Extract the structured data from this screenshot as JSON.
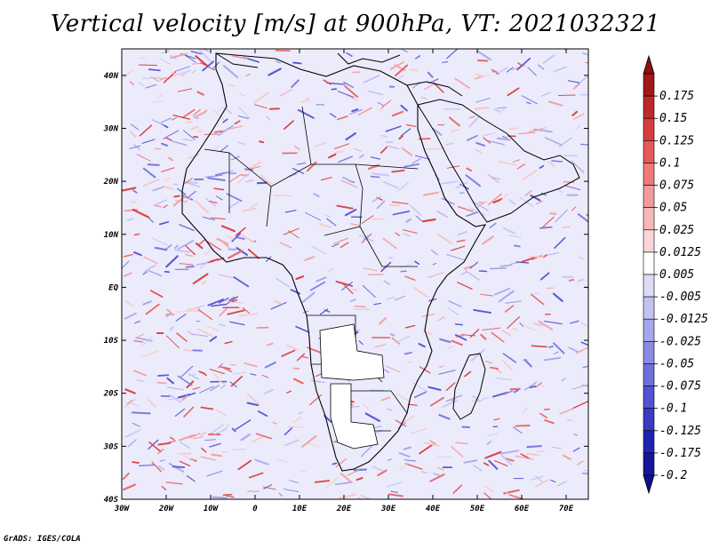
{
  "title": "Vertical velocity [m/s] at 900hPa, VT: 2021032321",
  "credit": "GrADS: IGES/COLA",
  "map": {
    "lon_range": [
      -30,
      75
    ],
    "lat_range": [
      -40,
      45
    ],
    "lon_ticks": [
      {
        "value": -30,
        "label": "30W"
      },
      {
        "value": -20,
        "label": "20W"
      },
      {
        "value": -10,
        "label": "10W"
      },
      {
        "value": 0,
        "label": "0"
      },
      {
        "value": 10,
        "label": "10E"
      },
      {
        "value": 20,
        "label": "20E"
      },
      {
        "value": 30,
        "label": "30E"
      },
      {
        "value": 40,
        "label": "40E"
      },
      {
        "value": 50,
        "label": "50E"
      },
      {
        "value": 60,
        "label": "60E"
      },
      {
        "value": 70,
        "label": "70E"
      }
    ],
    "lat_ticks": [
      {
        "value": 40,
        "label": "40N"
      },
      {
        "value": 30,
        "label": "30N"
      },
      {
        "value": 20,
        "label": "20N"
      },
      {
        "value": 10,
        "label": "10N"
      },
      {
        "value": 0,
        "label": "EQ"
      },
      {
        "value": -10,
        "label": "10S"
      },
      {
        "value": -20,
        "label": "20S"
      },
      {
        "value": -30,
        "label": "30S"
      },
      {
        "value": -40,
        "label": "40S"
      }
    ],
    "field": "vertical velocity",
    "units": "m/s",
    "level": "900hPa",
    "valid_time": "2021032321"
  },
  "colorbar": {
    "labels": [
      "0.175",
      "0.15",
      "0.125",
      "0.1",
      "0.075",
      "0.05",
      "0.025",
      "0.0125",
      "0.005",
      "-0.005",
      "-0.0125",
      "-0.025",
      "-0.05",
      "-0.075",
      "-0.1",
      "-0.125",
      "-0.175",
      "-0.2"
    ],
    "colors": [
      "#a01818",
      "#c02828",
      "#d83c3c",
      "#e85a5a",
      "#f07a7a",
      "#f59a9a",
      "#f8b8b8",
      "#fbd6d6",
      "#ffffff",
      "#dcdcf8",
      "#c2c2f2",
      "#a6a6ec",
      "#8a8ae4",
      "#6e6edc",
      "#5252d2",
      "#3a3ac6",
      "#2222b4",
      "#16169a"
    ],
    "top_arrow_color": "#8c1010",
    "bottom_arrow_color": "#10108a"
  }
}
